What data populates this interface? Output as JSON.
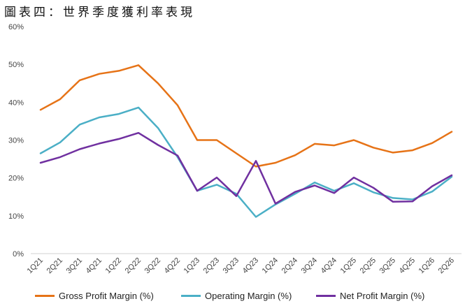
{
  "title": "圖表四：世界季度獲利率表現",
  "chart_data": {
    "type": "line",
    "categories": [
      "1Q21",
      "2Q21",
      "3Q21",
      "4Q21",
      "1Q22",
      "2Q22",
      "3Q22",
      "4Q22",
      "1Q23",
      "2Q23",
      "3Q23",
      "4Q23",
      "1Q24",
      "2Q24",
      "3Q24",
      "4Q24",
      "1Q25",
      "2Q25",
      "3Q25",
      "4Q25",
      "1Q26",
      "2Q26"
    ],
    "yticks": [
      "0%",
      "10%",
      "20%",
      "30%",
      "40%",
      "50%",
      "60%"
    ],
    "ylim": [
      0,
      60
    ],
    "grid": false,
    "legend_position": "bottom",
    "series": [
      {
        "name": "Gross Profit Margin (%)",
        "color": "#e67317",
        "values": [
          38,
          40.8,
          45.8,
          47.5,
          48.3,
          49.8,
          45,
          39.2,
          30,
          30,
          26.5,
          23,
          24,
          26,
          29,
          28.6,
          30,
          28,
          26.7,
          27.3,
          29.2,
          32.2
        ]
      },
      {
        "name": "Operating Margin (%)",
        "color": "#4bafc6",
        "values": [
          26.5,
          29.4,
          34.1,
          36,
          36.9,
          38.6,
          33.2,
          25.5,
          16.6,
          18.2,
          15.8,
          9.7,
          13,
          15.8,
          18.8,
          16.6,
          18.6,
          16.2,
          14.7,
          14.3,
          16.4,
          20.3
        ]
      },
      {
        "name": "Net Profit Margin (%)",
        "color": "#7030a0",
        "values": [
          24,
          25.5,
          27.6,
          29.1,
          30.3,
          31.9,
          28.7,
          25.9,
          16.6,
          20.1,
          15.2,
          24.5,
          13.2,
          16.3,
          18,
          16,
          20.1,
          17.4,
          13.7,
          13.8,
          17.8,
          20.7
        ]
      }
    ]
  }
}
